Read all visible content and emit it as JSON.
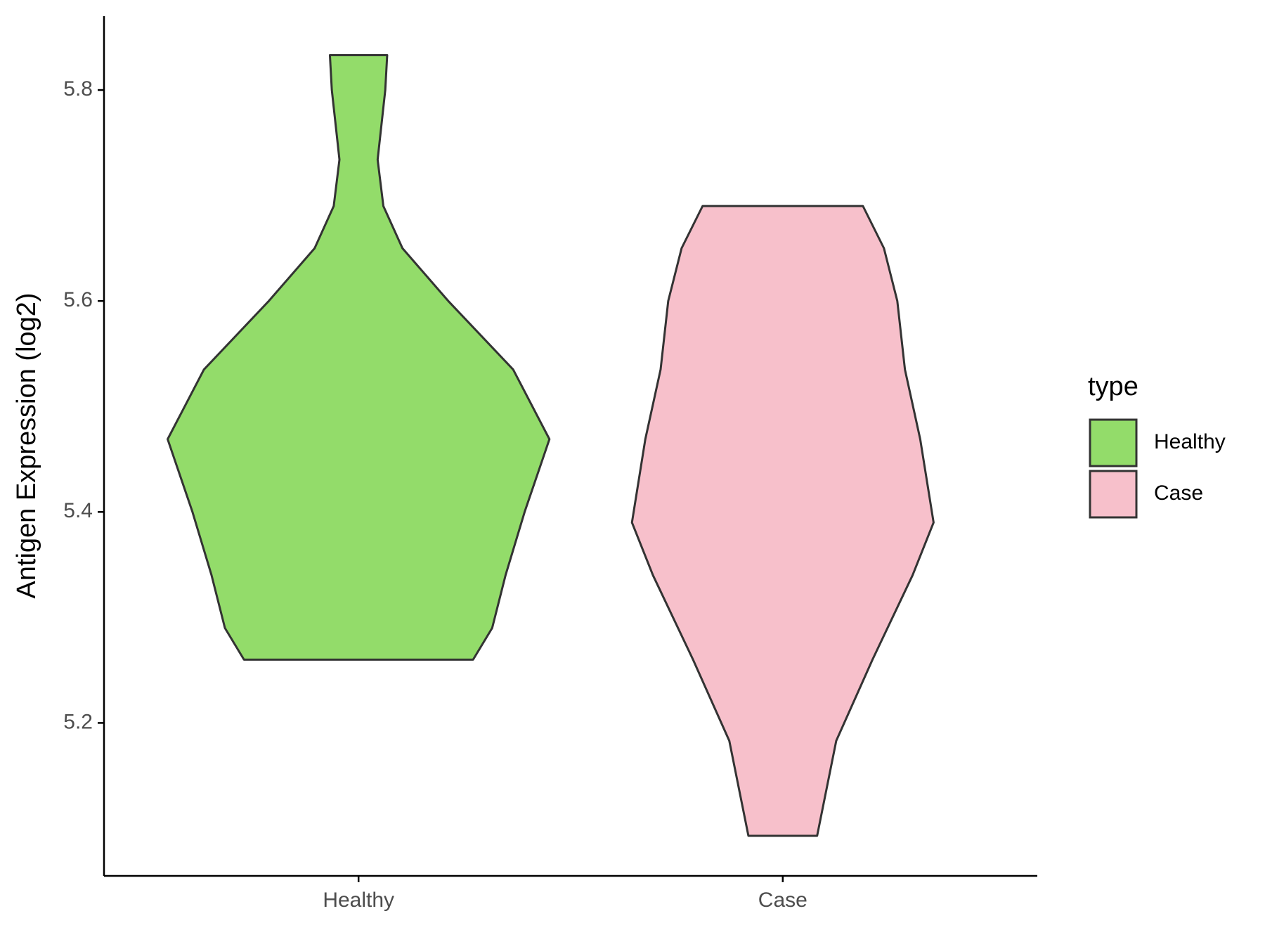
{
  "chart_data": {
    "type": "violin",
    "y_label": "Antigen Expression (log2)",
    "categories": [
      "Healthy",
      "Case"
    ],
    "legend_title": "type",
    "legend_position": "right",
    "series": [
      {
        "name": "Healthy",
        "color": "#93dc6a",
        "y": [
          5.26,
          5.29,
          5.34,
          5.4,
          5.469,
          5.535,
          5.6,
          5.65,
          5.69,
          5.734,
          5.8,
          5.833
        ],
        "density": [
          0.6,
          0.7,
          0.77,
          0.87,
          1,
          0.81,
          0.47,
          0.23,
          0.13,
          0.1,
          0.14,
          0.15
        ]
      },
      {
        "name": "Case",
        "color": "#f7c0cb",
        "y": [
          5.093,
          5.183,
          5.26,
          5.34,
          5.39,
          5.469,
          5.535,
          5.6,
          5.65,
          5.69
        ],
        "density": [
          0.18,
          0.28,
          0.47,
          0.68,
          0.79,
          0.72,
          0.64,
          0.6,
          0.53,
          0.42
        ]
      }
    ],
    "ylim": [
      5.055,
      5.87
    ],
    "yticks": [
      5.2,
      5.4,
      5.6,
      5.8
    ]
  }
}
